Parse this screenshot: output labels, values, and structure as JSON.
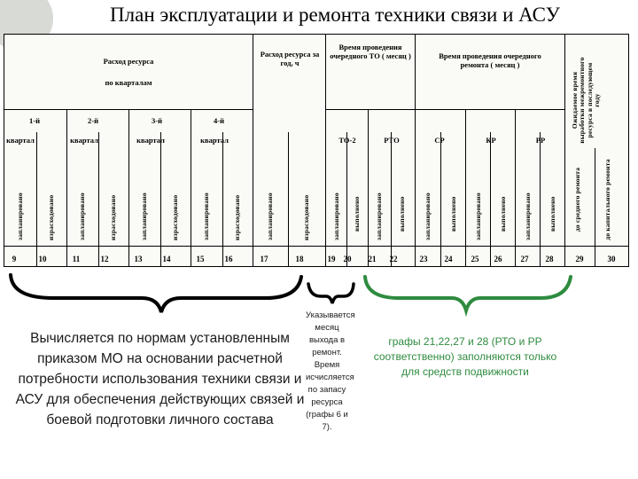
{
  "title": "План эксплуатации и ремонта техники связи и АСУ",
  "header": {
    "resource_by_quarter_line1": "Расход ресурса",
    "resource_by_quarter_line2": "по кварталам",
    "resource_year": "Расход ресурса за год, ч",
    "to_time": "Время проведения очередного ТО ( месяц )",
    "repair_time": "Время проведения очередного ремонта ( месяц )",
    "expected_time": "Ожидаемое время выработки межремонтного ресурса в последующем году",
    "quarters": [
      "1-й",
      "2-й",
      "3-й",
      "4-й"
    ],
    "quarter_word": "квартал",
    "year_planned": "запланировано",
    "year_worked": "израсходовано",
    "maint_types": [
      "ТО-2",
      "РТО",
      "СР",
      "КР",
      "РР"
    ],
    "planned": "запланировано",
    "done": "выполнено",
    "worked": "израсходовано",
    "to_medium": "до среднего ремонта",
    "to_capital": "до капитального ремонта"
  },
  "column_numbers": [
    "9",
    "10",
    "11",
    "12",
    "13",
    "14",
    "15",
    "16",
    "17",
    "18",
    "19",
    "20",
    "21",
    "22",
    "23",
    "24",
    "25",
    "26",
    "27",
    "28",
    "29",
    "30"
  ],
  "notes": {
    "left": "Вычисляется по нормам установленным приказом МО на основании расчетной потребности использования техники связи и АСУ для обеспечения действующих связей и боевой подготовки личного состава",
    "middle": "Указывается месяц выхода в ремонт. Время исчисляется по запасу ресурса (графы 6 и 7).",
    "right": "графы 21,22,27 и 28 (РТО и РР соответственно) заполняются только для средств подвижности"
  },
  "colors": {
    "note_right": "#2e8b3e",
    "background": "#fafaf6"
  }
}
